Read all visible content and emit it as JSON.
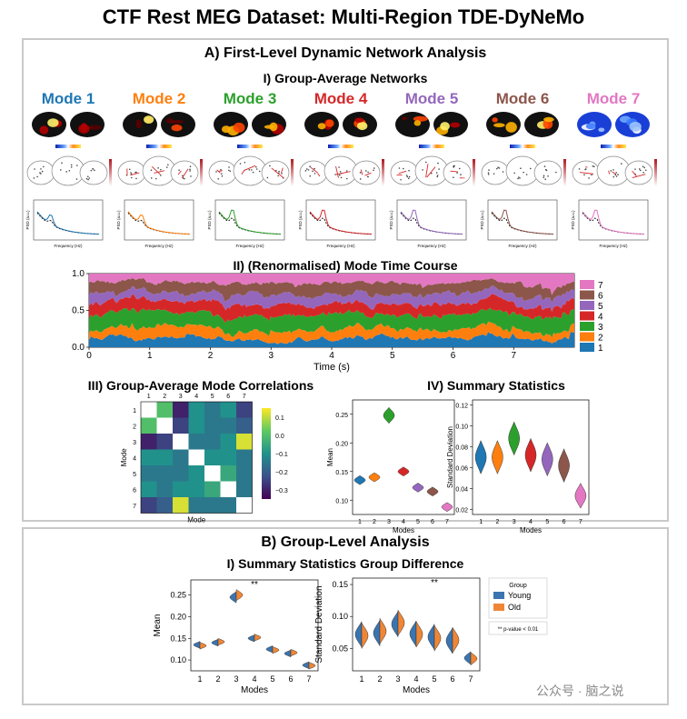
{
  "title": "CTF Rest MEG Dataset: Multi-Region TDE-DyNeMo",
  "panelA": {
    "title": "A) First-Level Dynamic Network Analysis",
    "s1": "I) Group-Average Networks",
    "s2": "II) (Renormalised) Mode Time Course",
    "s3": "III) Group-Average Mode Correlations",
    "s4": "IV) Summary Statistics"
  },
  "panelB": {
    "title": "B) Group-Level Analysis",
    "s1": "I) Summary Statistics Group Difference"
  },
  "modes": [
    {
      "label": "Mode 1",
      "color": "#1f77b4"
    },
    {
      "label": "Mode 2",
      "color": "#ff7f0e"
    },
    {
      "label": "Mode 3",
      "color": "#2ca02c"
    },
    {
      "label": "Mode 4",
      "color": "#d62728"
    },
    {
      "label": "Mode 5",
      "color": "#9467bd"
    },
    {
      "label": "Mode 6",
      "color": "#8c564b"
    },
    {
      "label": "Mode 7",
      "color": "#e377c2"
    }
  ],
  "mini": {
    "psd_ylabel": "PSD (a.u.)",
    "psd_xlabel": "Frequency (Hz)"
  },
  "chart_data": [
    {
      "type": "area",
      "title": "II) (Renormalised) Mode Time Course",
      "xlabel": "Time (s)",
      "ylabel": "",
      "xlim": [
        0,
        8
      ],
      "ylim": [
        0,
        1
      ],
      "xticks": [
        "0",
        "1",
        "2",
        "3",
        "4",
        "5",
        "6",
        "7"
      ],
      "yticks": [
        "0.0",
        "0.5",
        "1.0"
      ],
      "legend": [
        "1",
        "2",
        "3",
        "4",
        "5",
        "6",
        "7"
      ],
      "legend_placement": "right"
    },
    {
      "type": "heatmap",
      "title": "III) Group-Average Mode Correlations",
      "xlabel": "Mode",
      "ylabel": "Mode",
      "labels": [
        "1",
        "2",
        "3",
        "4",
        "5",
        "6",
        "7"
      ],
      "values": [
        [
          null,
          0.0,
          -0.3,
          -0.1,
          -0.15,
          -0.1,
          -0.25
        ],
        [
          0.0,
          null,
          -0.25,
          -0.1,
          -0.15,
          -0.15,
          -0.2
        ],
        [
          -0.3,
          -0.25,
          null,
          -0.15,
          -0.15,
          -0.1,
          0.12
        ],
        [
          -0.1,
          -0.1,
          -0.15,
          null,
          -0.1,
          -0.1,
          -0.15
        ],
        [
          -0.15,
          -0.15,
          -0.15,
          -0.1,
          null,
          -0.05,
          -0.15
        ],
        [
          -0.1,
          -0.15,
          -0.1,
          -0.1,
          -0.05,
          null,
          -0.15
        ],
        [
          -0.25,
          -0.2,
          0.12,
          -0.15,
          -0.15,
          -0.15,
          null
        ]
      ],
      "colorbar_ticks": [
        "0.1",
        "0.0",
        "−0.1",
        "−0.2",
        "−0.3"
      ]
    },
    {
      "type": "violin",
      "title": "IV) Summary Statistics",
      "xlabel": "Modes",
      "ylabel": "Mean",
      "categories": [
        "1",
        "2",
        "3",
        "4",
        "5",
        "6",
        "7"
      ],
      "values": [
        0.135,
        0.14,
        0.248,
        0.15,
        0.122,
        0.115,
        0.088
      ],
      "yticks": [
        "0.10",
        "0.15",
        "0.20",
        "0.25"
      ],
      "ylim": [
        0.075,
        0.275
      ]
    },
    {
      "type": "violin",
      "xlabel": "Modes",
      "ylabel": "Standard Deviation",
      "categories": [
        "1",
        "2",
        "3",
        "4",
        "5",
        "6",
        "7"
      ],
      "values": [
        0.07,
        0.07,
        0.088,
        0.072,
        0.068,
        0.062,
        0.033
      ],
      "yticks": [
        "0.02",
        "0.04",
        "0.06",
        "0.08",
        "0.10",
        "0.12"
      ],
      "ylim": [
        0.015,
        0.125
      ]
    },
    {
      "type": "violin",
      "title": "I) Summary Statistics Group Difference",
      "xlabel": "Modes",
      "ylabel": "Mean",
      "categories": [
        "1",
        "2",
        "3",
        "4",
        "5",
        "6",
        "7"
      ],
      "series": [
        {
          "name": "Young",
          "values": [
            0.135,
            0.14,
            0.245,
            0.15,
            0.125,
            0.115,
            0.088
          ]
        },
        {
          "name": "Old",
          "values": [
            0.133,
            0.142,
            0.25,
            0.152,
            0.123,
            0.117,
            0.087
          ]
        }
      ],
      "significant": [
        "4"
      ],
      "yticks": [
        "0.10",
        "0.15",
        "0.20",
        "0.25"
      ],
      "ylim": [
        0.075,
        0.285
      ]
    },
    {
      "type": "violin",
      "xlabel": "Modes",
      "ylabel": "Standard Deviation",
      "categories": [
        "1",
        "2",
        "3",
        "4",
        "5",
        "6",
        "7"
      ],
      "series": [
        {
          "name": "Young",
          "values": [
            0.072,
            0.074,
            0.088,
            0.073,
            0.068,
            0.062,
            0.035
          ]
        },
        {
          "name": "Old",
          "values": [
            0.07,
            0.077,
            0.09,
            0.072,
            0.066,
            0.063,
            0.034
          ]
        }
      ],
      "significant": [
        "5"
      ],
      "yticks": [
        "0.05",
        "0.10",
        "0.15"
      ],
      "ylim": [
        0.015,
        0.16
      ],
      "legend_title": "Group",
      "legend": [
        "Young",
        "Old"
      ],
      "legend_placement": "right",
      "note": "p-value < 0.01"
    }
  ],
  "colors": {
    "young": "#3b75af",
    "old": "#ef8636"
  },
  "watermark": "公众号 · 脑之说"
}
